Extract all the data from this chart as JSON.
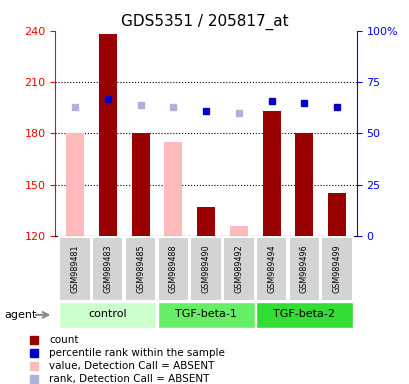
{
  "title": "GDS5351 / 205817_at",
  "samples": [
    "GSM989481",
    "GSM989483",
    "GSM989485",
    "GSM989488",
    "GSM989490",
    "GSM989492",
    "GSM989494",
    "GSM989496",
    "GSM989499"
  ],
  "groups": [
    {
      "name": "control",
      "indices": [
        0,
        1,
        2
      ]
    },
    {
      "name": "TGF-beta-1",
      "indices": [
        3,
        4,
        5
      ]
    },
    {
      "name": "TGF-beta-2",
      "indices": [
        6,
        7,
        8
      ]
    }
  ],
  "bar_values": [
    180,
    238,
    180,
    175,
    137,
    126,
    193,
    180,
    145
  ],
  "bar_absent": [
    true,
    false,
    false,
    true,
    false,
    true,
    false,
    false,
    false
  ],
  "rank_values": [
    63,
    67,
    64,
    63,
    61,
    60,
    66,
    65,
    63
  ],
  "rank_absent": [
    true,
    false,
    true,
    true,
    false,
    true,
    false,
    false,
    false
  ],
  "ylim_left": [
    120,
    240
  ],
  "ylim_right": [
    0,
    100
  ],
  "yticks_left": [
    120,
    150,
    180,
    210,
    240
  ],
  "yticks_right": [
    0,
    25,
    50,
    75,
    100
  ],
  "ytick_labels_right": [
    "0",
    "25",
    "50",
    "75",
    "100%"
  ],
  "bar_color_present": "#990000",
  "bar_color_absent": "#ffbbbb",
  "rank_color_present": "#0000cc",
  "rank_color_absent": "#b0b0dd",
  "group_colors": [
    "#ccffcc",
    "#66ee66",
    "#33dd33"
  ],
  "agent_label": "agent",
  "legend": [
    {
      "label": "count",
      "color": "#990000"
    },
    {
      "label": "percentile rank within the sample",
      "color": "#0000cc"
    },
    {
      "label": "value, Detection Call = ABSENT",
      "color": "#ffbbbb"
    },
    {
      "label": "rank, Detection Call = ABSENT",
      "color": "#b0b0dd"
    }
  ]
}
